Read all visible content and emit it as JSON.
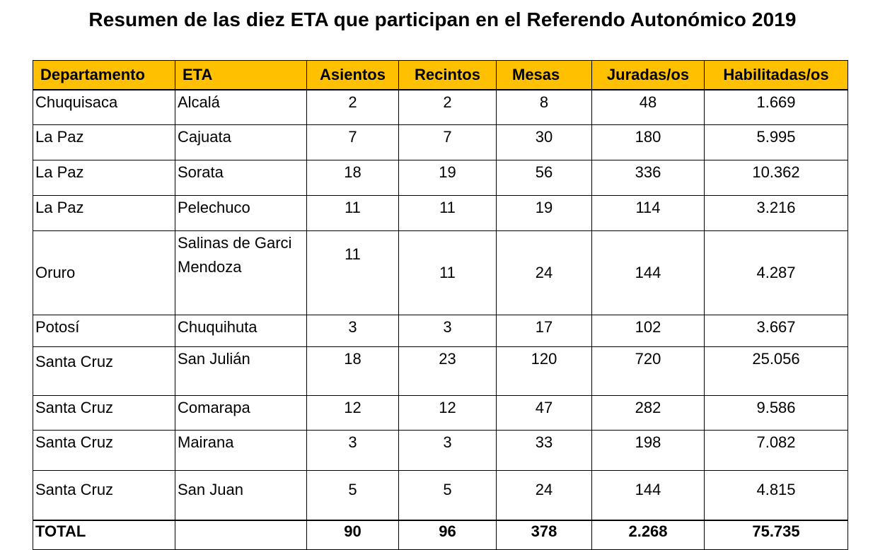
{
  "title": "Resumen de las diez ETA que participan en el Referendo Autonómico 2019",
  "columns": [
    "Departamento",
    "ETA",
    "Asientos",
    "Recintos",
    "Mesas",
    "Juradas/os",
    "Habilitadas/os"
  ],
  "rows": [
    {
      "departamento": "Chuquisaca",
      "eta": "Alcalá",
      "asientos": "2",
      "recintos": "2",
      "mesas": "8",
      "juradas": "48",
      "habilitadas": "1.669"
    },
    {
      "departamento": "La Paz",
      "eta": "Cajuata",
      "asientos": "7",
      "recintos": "7",
      "mesas": "30",
      "juradas": "180",
      "habilitadas": "5.995"
    },
    {
      "departamento": "La Paz",
      "eta": "Sorata",
      "asientos": "18",
      "recintos": "19",
      "mesas": "56",
      "juradas": "336",
      "habilitadas": "10.362"
    },
    {
      "departamento": "La Paz",
      "eta": "Pelechuco",
      "asientos": "11",
      "recintos": "11",
      "mesas": "19",
      "juradas": "114",
      "habilitadas": "3.216"
    },
    {
      "departamento": "Oruro",
      "eta_line1": "Salinas de Garci",
      "eta_line2": "Mendoza",
      "asientos": "11",
      "recintos": "11",
      "mesas": "24",
      "juradas": "144",
      "habilitadas": "4.287"
    },
    {
      "departamento": "Potosí",
      "eta": "Chuquihuta",
      "asientos": "3",
      "recintos": "3",
      "mesas": "17",
      "juradas": "102",
      "habilitadas": "3.667"
    },
    {
      "departamento": "Santa Cruz",
      "eta": "San Julián",
      "asientos": "18",
      "recintos": "23",
      "mesas": "120",
      "juradas": "720",
      "habilitadas": "25.056"
    },
    {
      "departamento": "Santa Cruz",
      "eta": "Comarapa",
      "asientos": "12",
      "recintos": "12",
      "mesas": "47",
      "juradas": "282",
      "habilitadas": "9.586"
    },
    {
      "departamento": "Santa Cruz",
      "eta": "Mairana",
      "asientos": "3",
      "recintos": "3",
      "mesas": "33",
      "juradas": "198",
      "habilitadas": "7.082"
    },
    {
      "departamento": "Santa Cruz",
      "eta": "San Juan",
      "asientos": "5",
      "recintos": "5",
      "mesas": "24",
      "juradas": "144",
      "habilitadas": "4.815"
    }
  ],
  "total": {
    "label": "TOTAL",
    "asientos": "90",
    "recintos": "96",
    "mesas": "378",
    "juradas": "2.268",
    "habilitadas": "75.735"
  },
  "colors": {
    "header_bg": "#ffc000",
    "border": "#000000"
  }
}
